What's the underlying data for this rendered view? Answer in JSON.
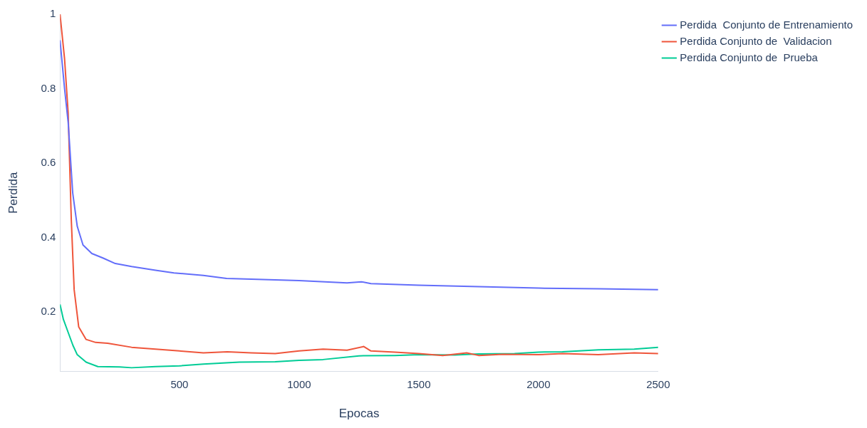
{
  "chart_data": {
    "type": "line",
    "xlabel": "Epocas",
    "ylabel": "Perdida",
    "xlim": [
      1,
      2500
    ],
    "xticks": [
      500,
      1000,
      1500,
      2000,
      2500
    ],
    "ylim": [
      0.04,
      1
    ],
    "yticks": [
      0.2,
      0.4,
      0.6,
      0.8,
      1
    ],
    "grid": false,
    "legend": "top right",
    "marker": "none",
    "line_style": "solid",
    "series": [
      {
        "name": "Perdida  Conjunto de Entrenamiento",
        "color": "#636efa",
        "x": [
          1,
          20,
          35,
          54,
          73,
          97,
          134,
          180,
          232,
          300,
          400,
          477,
          600,
          697,
          800,
          1000,
          1200,
          1260,
          1300,
          1500,
          1750,
          2000,
          2250,
          2500
        ],
        "values": [
          0.93,
          0.8,
          0.71,
          0.52,
          0.43,
          0.38,
          0.357,
          0.345,
          0.33,
          0.322,
          0.312,
          0.305,
          0.298,
          0.29,
          0.288,
          0.284,
          0.278,
          0.281,
          0.276,
          0.272,
          0.268,
          0.264,
          0.262,
          0.26
        ]
      },
      {
        "name": "Perdida Conjunto de  Validacion",
        "color": "#ef553b",
        "x": [
          1,
          20,
          35,
          48,
          60,
          79,
          110,
          150,
          200,
          300,
          400,
          500,
          600,
          700,
          800,
          900,
          1000,
          1100,
          1200,
          1270,
          1300,
          1400,
          1500,
          1600,
          1700,
          1750,
          1850,
          2000,
          2100,
          2250,
          2400,
          2500
        ],
        "values": [
          1.0,
          0.88,
          0.735,
          0.45,
          0.26,
          0.16,
          0.126,
          0.118,
          0.116,
          0.105,
          0.1,
          0.095,
          0.09,
          0.093,
          0.09,
          0.088,
          0.095,
          0.1,
          0.097,
          0.107,
          0.095,
          0.092,
          0.088,
          0.083,
          0.09,
          0.083,
          0.086,
          0.085,
          0.088,
          0.085,
          0.09,
          0.088
        ]
      },
      {
        "name": "Perdida Conjunto de  Prueba",
        "color": "#00cc96",
        "x": [
          1,
          15,
          35,
          55,
          73,
          110,
          159,
          250,
          300,
          400,
          500,
          600,
          750,
          900,
          1000,
          1100,
          1250,
          1400,
          1500,
          1650,
          1750,
          1900,
          2000,
          2100,
          2250,
          2400,
          2500
        ],
        "values": [
          0.22,
          0.18,
          0.145,
          0.11,
          0.085,
          0.065,
          0.053,
          0.052,
          0.05,
          0.053,
          0.055,
          0.06,
          0.065,
          0.066,
          0.07,
          0.072,
          0.082,
          0.083,
          0.085,
          0.084,
          0.087,
          0.088,
          0.092,
          0.093,
          0.098,
          0.1,
          0.105
        ]
      }
    ]
  }
}
